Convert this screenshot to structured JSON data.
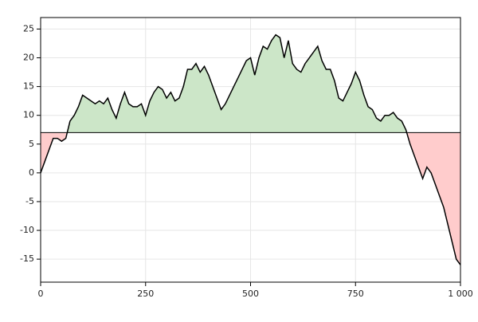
{
  "chart_data": {
    "type": "line",
    "x": [
      0,
      10,
      20,
      30,
      40,
      50,
      60,
      70,
      80,
      90,
      100,
      110,
      120,
      130,
      140,
      150,
      160,
      170,
      180,
      190,
      200,
      210,
      220,
      230,
      240,
      250,
      260,
      270,
      280,
      290,
      300,
      310,
      320,
      330,
      340,
      350,
      360,
      370,
      380,
      390,
      400,
      410,
      420,
      430,
      440,
      450,
      460,
      470,
      480,
      490,
      500,
      510,
      520,
      530,
      540,
      550,
      560,
      570,
      580,
      590,
      600,
      610,
      620,
      630,
      640,
      650,
      660,
      670,
      680,
      690,
      700,
      710,
      720,
      730,
      740,
      750,
      760,
      770,
      780,
      790,
      800,
      810,
      820,
      830,
      840,
      850,
      860,
      870,
      880,
      890,
      900,
      910,
      920,
      930,
      940,
      950,
      960,
      970,
      980,
      990,
      1000
    ],
    "series": [
      {
        "color": "#000000",
        "values": [
          0,
          2,
          4,
          6,
          6,
          5.5,
          6,
          9,
          10,
          11.5,
          13.5,
          13,
          12.5,
          12,
          12.5,
          12,
          13,
          11,
          9.5,
          12,
          14,
          12,
          11.5,
          11.5,
          12,
          10,
          12.5,
          14,
          15,
          14.5,
          13,
          14,
          12.5,
          13,
          15,
          18,
          18,
          19,
          17.5,
          18.5,
          17,
          15,
          13,
          11,
          12,
          13.5,
          15,
          16.5,
          18,
          19.5,
          20,
          17,
          20,
          22,
          21.5,
          23,
          24,
          23.5,
          20,
          23,
          19,
          18,
          17.5,
          19,
          20,
          21,
          22,
          19.5,
          18,
          18,
          16,
          13,
          12.5,
          14,
          15.5,
          17.5,
          16,
          13.5,
          11.5,
          11,
          9.5,
          9,
          10,
          10,
          10.5,
          9.5,
          9,
          7.5,
          5,
          3,
          1,
          -1,
          1,
          0,
          -2,
          -4,
          -6,
          -9,
          -12,
          -15,
          -16
        ]
      }
    ],
    "baseline": 7,
    "above_color": "#cce6c8",
    "below_color": "#ffcccc",
    "xlim": [
      0,
      1000
    ],
    "xticks": [
      0,
      250,
      500,
      750,
      {
        "value": 1000,
        "label": "1 000"
      }
    ],
    "ylim": [
      -19,
      27
    ],
    "yticks": [
      -15,
      -10,
      -5,
      0,
      5,
      10,
      15,
      20,
      25
    ],
    "grid": true
  }
}
